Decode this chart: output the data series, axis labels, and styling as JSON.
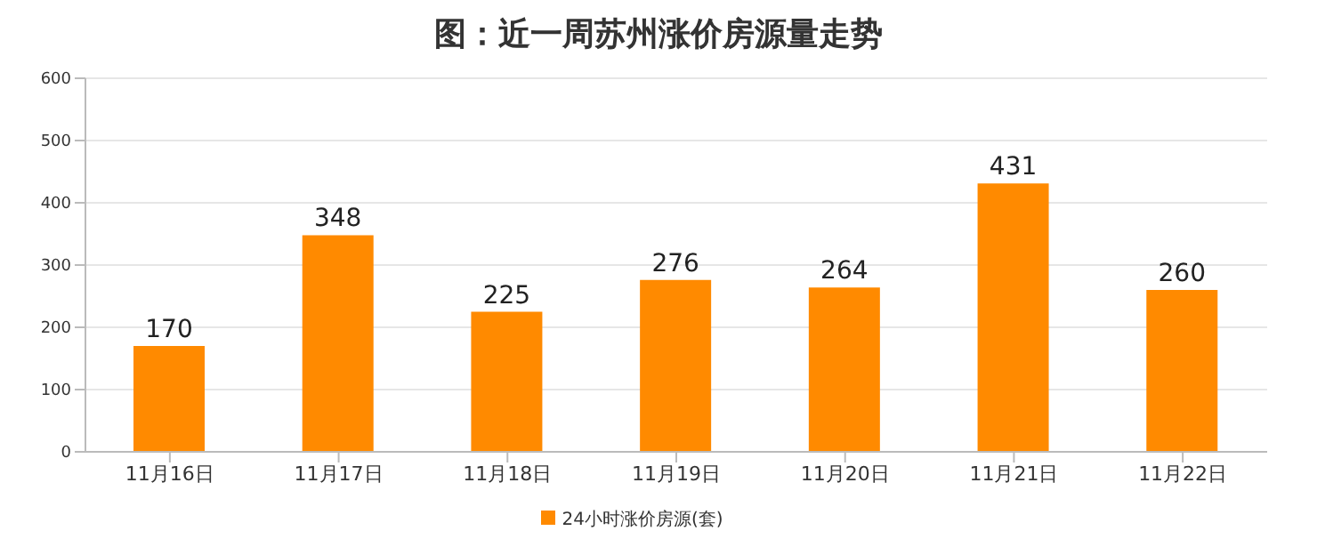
{
  "chart_data": {
    "type": "bar",
    "title": "图：近一周苏州涨价房源量走势",
    "categories": [
      "11月16日",
      "11月17日",
      "11月18日",
      "11月19日",
      "11月20日",
      "11月21日",
      "11月22日"
    ],
    "series": [
      {
        "name": "24小时涨价房源(套)",
        "color": "#ff8a00",
        "values": [
          170,
          348,
          225,
          276,
          264,
          431,
          260
        ]
      }
    ],
    "ylim": [
      0,
      600
    ],
    "yticks": [
      0,
      100,
      200,
      300,
      400,
      500,
      600
    ],
    "grid": "y",
    "legend": "bottom",
    "data_labels": true
  }
}
